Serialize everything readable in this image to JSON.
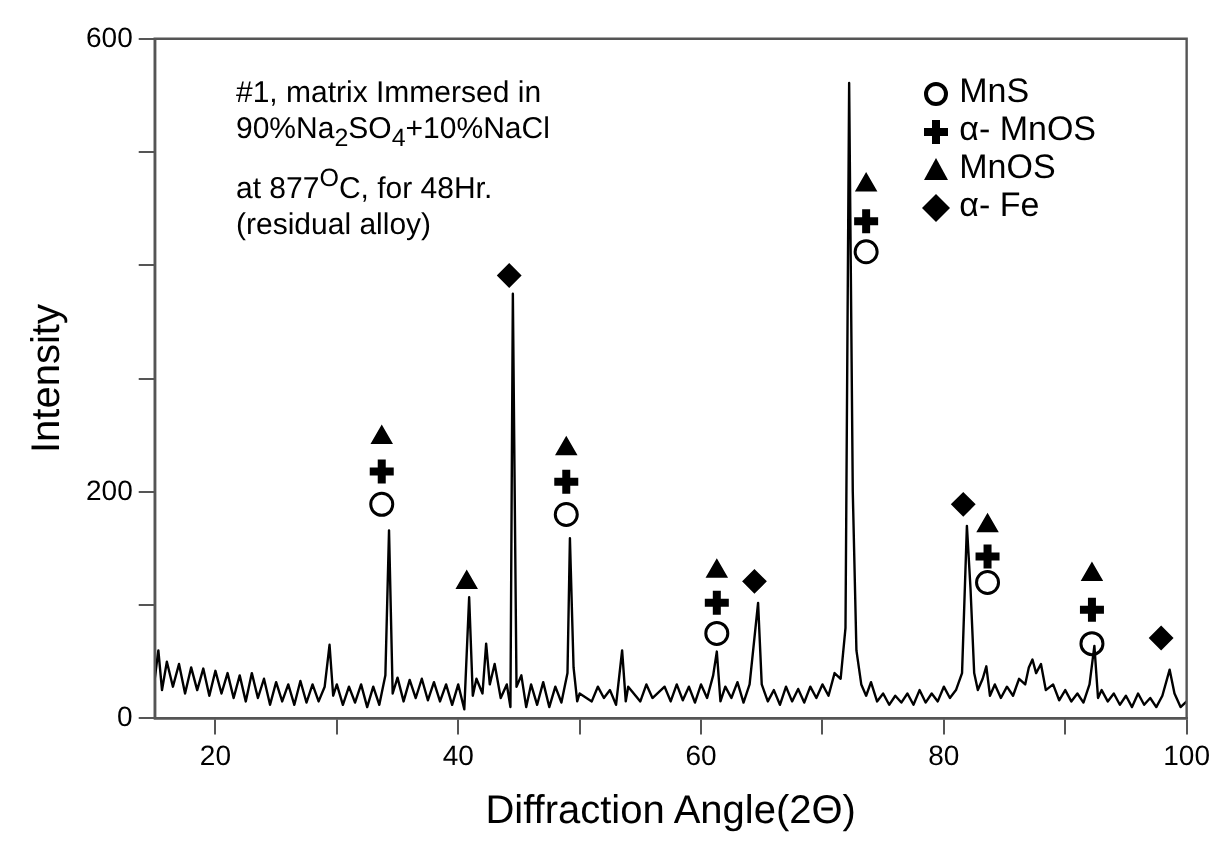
{
  "chart_data": {
    "type": "line",
    "xlabel": "Diffraction Angle(2Θ)",
    "ylabel": "Intensity",
    "annotations": [
      "#1, matrix Immersed in",
      "90%Na$_{2}$SO$_{4}$+10%NaCl",
      "at 877$^{O}$C, for 48Hr.",
      "(residual alloy)"
    ],
    "xlim": [
      15,
      100
    ],
    "xticks": [
      20,
      {
        "value": 30,
        "label": null
      },
      40,
      {
        "value": 50,
        "label": null
      },
      60,
      {
        "value": 70,
        "label": null
      },
      80,
      {
        "value": 90,
        "label": null
      },
      100
    ],
    "ylim": [
      0,
      600
    ],
    "yticks": [
      0,
      {
        "value": 100,
        "label": null
      },
      200,
      {
        "value": 300,
        "label": null
      },
      {
        "value": 400,
        "label": null
      },
      {
        "value": 500,
        "label": null
      },
      600
    ],
    "grid": false,
    "legend": "top right",
    "series": [
      {
        "type": "line",
        "color": "#000000",
        "marker": "none",
        "x": [
          15,
          15.3,
          15.6,
          16,
          16.5,
          17,
          17.5,
          18,
          18.5,
          19,
          19.5,
          20,
          20.5,
          21,
          21.5,
          22,
          22.5,
          23,
          23.5,
          24,
          24.5,
          25,
          25.5,
          26,
          26.5,
          27,
          27.5,
          28,
          28.5,
          29,
          29.4,
          29.7,
          30,
          30.5,
          31,
          31.5,
          32,
          32.5,
          33,
          33.5,
          34,
          34.3,
          34.6,
          35,
          35.5,
          36,
          36.5,
          37,
          37.5,
          38,
          38.5,
          39,
          39.5,
          40,
          40.5,
          40.9,
          41.2,
          41.5,
          42,
          42.3,
          42.6,
          43,
          43.5,
          44,
          44.3,
          44.5,
          44.8,
          45.2,
          45.6,
          46,
          46.5,
          47,
          47.5,
          48,
          48.5,
          49,
          49.2,
          49.5,
          49.8,
          50,
          51,
          51.5,
          52,
          52.5,
          53,
          53.5,
          53.8,
          54,
          55,
          55.5,
          56,
          57,
          57.5,
          58,
          58.5,
          59,
          59.5,
          60,
          60.5,
          61,
          61.3,
          61.6,
          62,
          62.5,
          63,
          63.5,
          64,
          64.7,
          65,
          65.5,
          66,
          66.5,
          67,
          67.5,
          68,
          68.5,
          69,
          69.5,
          70,
          70.5,
          71,
          71.5,
          71.9,
          72.2,
          72.5,
          72.8,
          73.2,
          73.6,
          74,
          74.5,
          75,
          75.5,
          76,
          76.5,
          77,
          77.5,
          78,
          78.5,
          79,
          79.5,
          80,
          80.5,
          81,
          81.5,
          81.9,
          82.2,
          82.5,
          82.8,
          83.2,
          83.5,
          83.8,
          84.2,
          84.7,
          85.2,
          85.7,
          86.2,
          86.7,
          87,
          87.3,
          87.6,
          88,
          88.4,
          89,
          89.5,
          90,
          90.5,
          91,
          91.5,
          92,
          92.4,
          92.7,
          93,
          93.5,
          94,
          94.5,
          95,
          95.5,
          96,
          96.5,
          97,
          97.5,
          98,
          98.6,
          99,
          99.5,
          100
        ],
        "values": [
          35,
          60,
          25,
          50,
          28,
          48,
          22,
          45,
          25,
          44,
          20,
          42,
          22,
          40,
          18,
          38,
          15,
          40,
          18,
          35,
          12,
          32,
          15,
          30,
          12,
          33,
          14,
          30,
          15,
          28,
          65,
          20,
          30,
          12,
          28,
          14,
          30,
          10,
          28,
          12,
          38,
          166,
          22,
          36,
          15,
          34,
          18,
          35,
          16,
          32,
          15,
          30,
          12,
          30,
          8,
          107,
          20,
          35,
          22,
          66,
          30,
          48,
          18,
          30,
          10,
          375,
          28,
          38,
          10,
          30,
          12,
          32,
          10,
          28,
          14,
          40,
          159,
          45,
          15,
          22,
          15,
          28,
          18,
          25,
          12,
          60,
          15,
          28,
          15,
          30,
          18,
          28,
          15,
          30,
          16,
          28,
          14,
          30,
          18,
          38,
          59,
          15,
          28,
          18,
          32,
          14,
          30,
          102,
          30,
          15,
          25,
          12,
          28,
          15,
          26,
          14,
          28,
          18,
          30,
          20,
          40,
          35,
          80,
          561,
          200,
          60,
          30,
          20,
          32,
          15,
          22,
          12,
          20,
          14,
          22,
          12,
          25,
          14,
          22,
          15,
          28,
          18,
          25,
          40,
          170,
          114,
          40,
          25,
          35,
          46,
          20,
          30,
          18,
          28,
          20,
          35,
          30,
          45,
          52,
          40,
          48,
          25,
          30,
          16,
          25,
          15,
          22,
          14,
          30,
          64,
          18,
          25,
          15,
          22,
          12,
          20,
          10,
          22,
          12,
          18,
          10,
          20,
          43,
          22,
          10,
          15
        ]
      },
      {
        "type": "scatter",
        "name": "MnS",
        "color": "#000000",
        "marker": "circle",
        "x": [
          33.7,
          48.9,
          61.3,
          73.6,
          83.6,
          92.2
        ],
        "values": [
          189,
          180,
          75,
          412,
          120,
          66
        ]
      },
      {
        "type": "scatter",
        "name": "α- MnOS",
        "color": "#000000",
        "marker": "cross",
        "x": [
          33.7,
          48.9,
          61.3,
          73.6,
          83.6,
          92.2
        ],
        "values": [
          218,
          209,
          102,
          439,
          143,
          96
        ]
      },
      {
        "type": "scatter",
        "name": "MnOS",
        "color": "#000000",
        "marker": "triangle",
        "x": [
          33.7,
          40.7,
          48.9,
          61.3,
          73.6,
          83.6,
          92.2
        ],
        "values": [
          248,
          120,
          238,
          130,
          471,
          170,
          127
        ]
      },
      {
        "type": "scatter",
        "name": "α- Fe",
        "color": "#000000",
        "marker": "diamond",
        "x": [
          44.2,
          64.4,
          81.6,
          97.9
        ],
        "values": [
          391,
          121,
          189,
          71
        ]
      }
    ]
  }
}
